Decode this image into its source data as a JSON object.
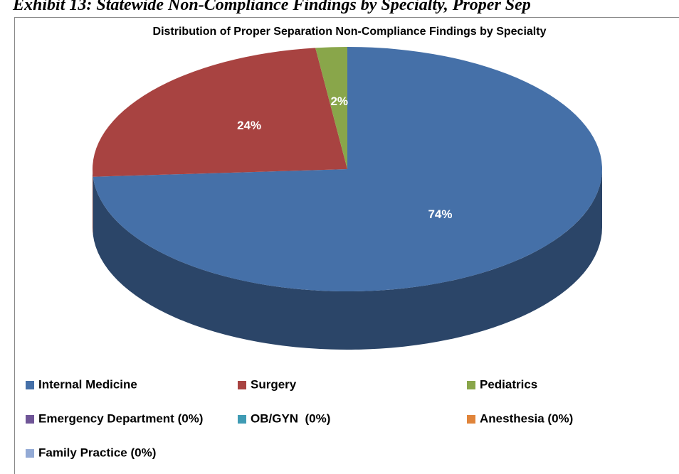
{
  "heading": "Exhibit 13: Statewide Non-Compliance Findings by Specialty, Proper Sep",
  "chart_data": {
    "type": "pie3d",
    "title": "Distribution of Proper Separation Non-Compliance Findings by Specialty",
    "categories": [
      "Internal Medicine",
      "Surgery",
      "Pediatrics",
      "Emergency Department (0%)",
      "OB/GYN  (0%)",
      "Anesthesia (0%)",
      "Family Practice (0%)"
    ],
    "values": [
      74,
      24,
      2,
      0,
      0,
      0,
      0
    ],
    "value_labels": [
      "74%",
      "24%",
      "2%",
      null,
      null,
      null,
      null
    ],
    "colors": [
      "#4570a8",
      "#a84341",
      "#89a64a",
      "#6f5597",
      "#3f9bb4",
      "#e0843a",
      "#93aad5"
    ],
    "legend": "bottom"
  }
}
